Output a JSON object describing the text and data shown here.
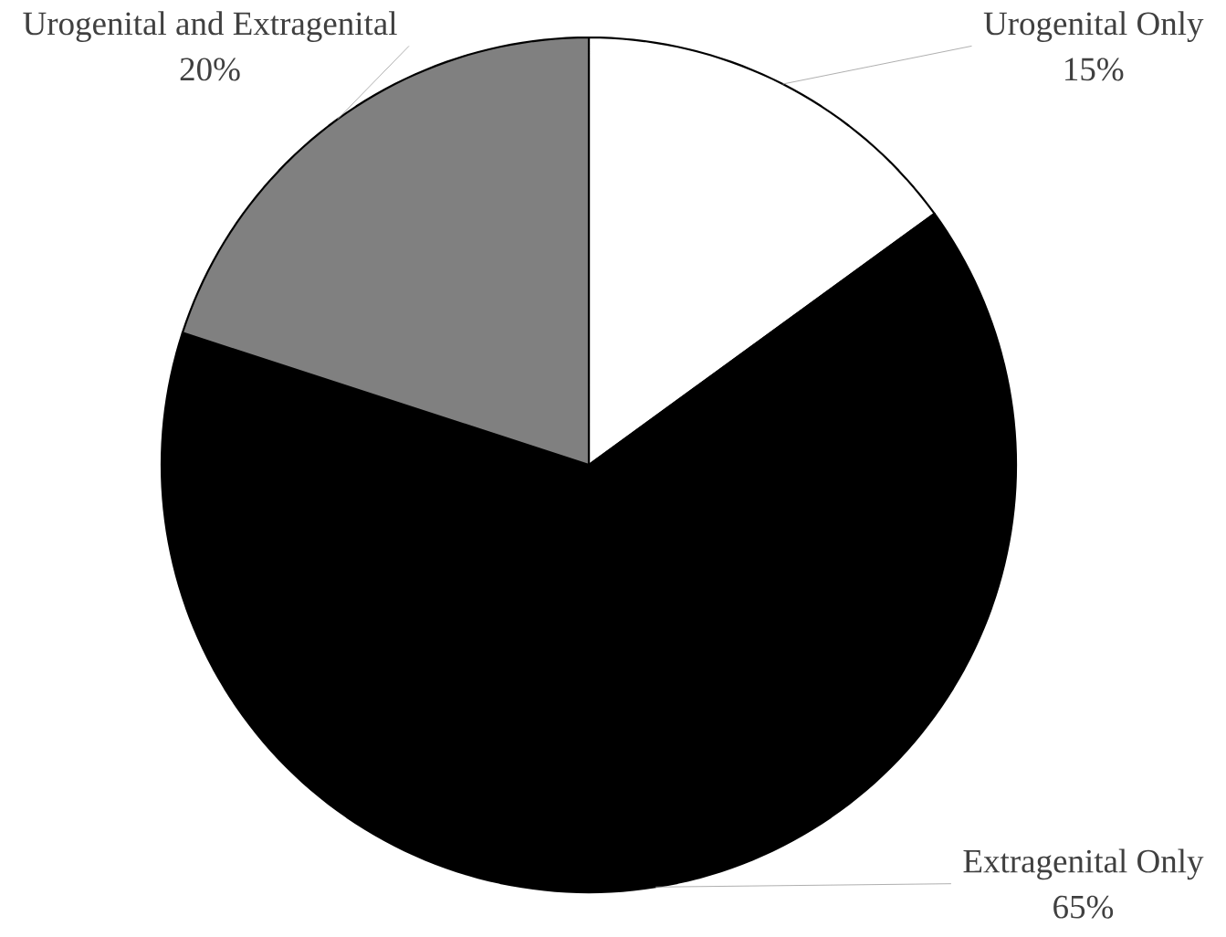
{
  "chart_data": {
    "type": "pie",
    "categories": [
      "Urogenital Only",
      "Extragenital Only",
      "Urogenital and Extragenital"
    ],
    "values": [
      15,
      65,
      20
    ],
    "value_labels": [
      "15%",
      "65%",
      "20%"
    ],
    "colors": [
      "#ffffff",
      "#000000",
      "#808080"
    ]
  }
}
